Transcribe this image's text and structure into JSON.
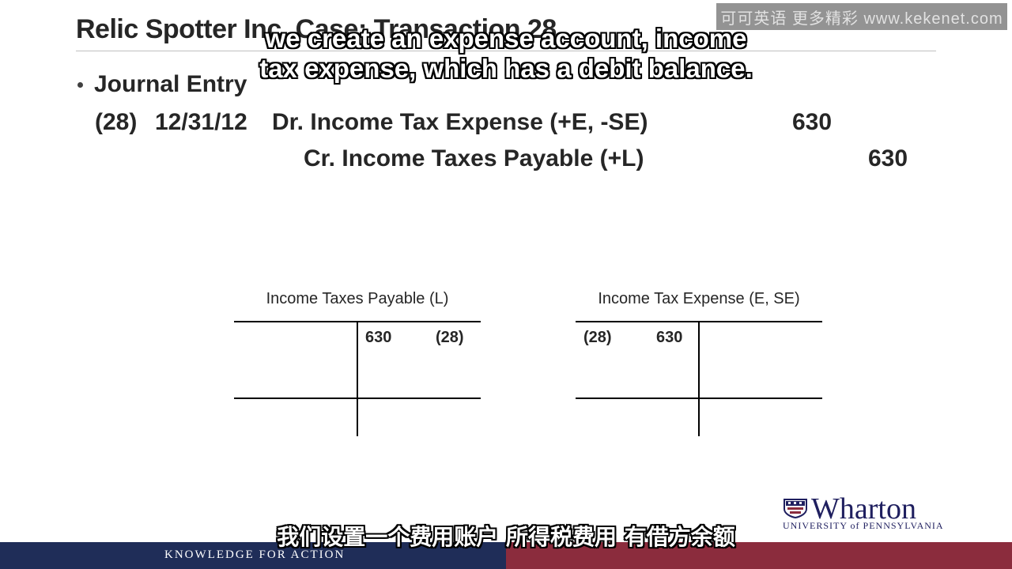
{
  "slide": {
    "title": "Relic Spotter Inc. Case: Transaction 28",
    "bullet": "Journal Entry",
    "entry": {
      "number": "(28)",
      "date": "12/31/12",
      "debit_line": "Dr. Income Tax Expense (+E, -SE)",
      "debit_amount": "630",
      "credit_line": "Cr. Income Taxes Payable (+L)",
      "credit_amount": "630"
    },
    "t_accounts": [
      {
        "label": "Income Taxes Payable (L)",
        "amount": "630",
        "ref": "(28)"
      },
      {
        "label": "Income Tax Expense (E, SE)",
        "ref": "(28)",
        "amount": "630"
      }
    ]
  },
  "watermark": "可可英语 更多精彩 www.kekenet.com",
  "subtitles": {
    "english_line1": "we create an expense account, income",
    "english_line2": "tax expense, which has a debit balance.",
    "chinese": "我们设置一个费用账户 所得税费用 有借方余额"
  },
  "branding": {
    "logo_word": "Wharton",
    "logo_sub": "UNIVERSITY of PENNSYLVANIA",
    "footer": "KNOWLEDGE FOR ACTION",
    "colors": {
      "navy": "#1f2d58",
      "maroon": "#8b2c3d"
    }
  }
}
